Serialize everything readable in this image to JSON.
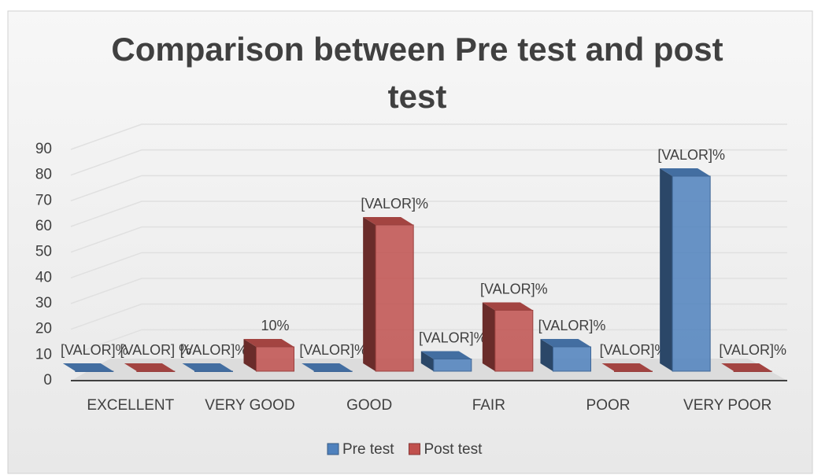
{
  "chart_data": {
    "type": "bar3d",
    "title": [
      "Comparison between Pre test and post",
      "test"
    ],
    "categories": [
      "EXCELLENT",
      "VERY GOOD",
      "GOOD",
      "FAIR",
      "POOR",
      "VERY POOR"
    ],
    "series": [
      {
        "name": "Pre test",
        "color": "#4f81bd",
        "values": [
          0,
          0,
          0,
          5,
          10,
          80
        ],
        "value_labels": [
          "[VALOR]%",
          "[VALOR]%",
          "[VALOR]%",
          "[VALOR]%",
          "[VALOR]%",
          "[VALOR]%"
        ]
      },
      {
        "name": "Post test",
        "color": "#c0504d",
        "values": [
          0,
          10,
          60,
          25,
          0,
          0
        ],
        "value_labels": [
          "[VALOR] %",
          "10%",
          "[VALOR]%",
          "[VALOR]%",
          "[VALOR]%",
          "[VALOR]%"
        ]
      }
    ],
    "ylim": [
      0,
      90
    ],
    "yticks": [
      0,
      10,
      20,
      30,
      40,
      50,
      60,
      70,
      80,
      90
    ],
    "grid": true,
    "legend": "bottom"
  }
}
